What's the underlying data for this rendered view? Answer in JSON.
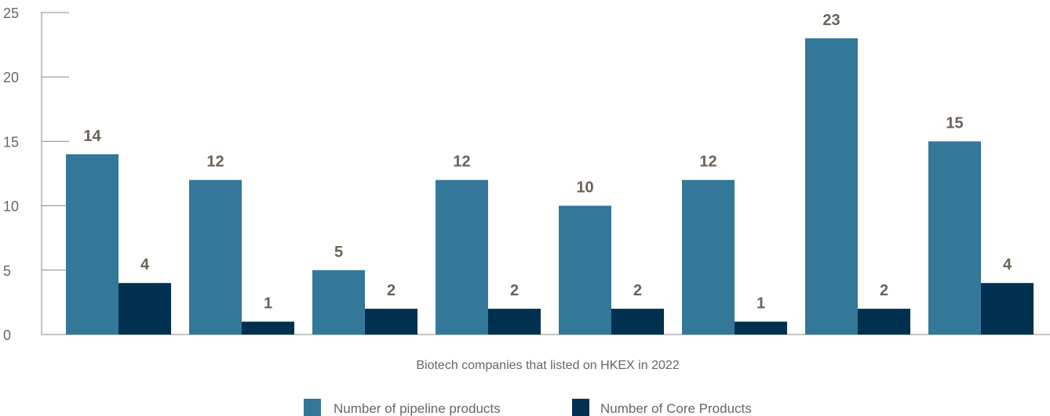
{
  "chart_data": {
    "type": "bar",
    "title": "",
    "xlabel": "Biotech companies that listed on HKEX in 2022",
    "ylabel": "",
    "ylim": [
      0,
      25
    ],
    "yticks": [
      0,
      5,
      10,
      15,
      20,
      25
    ],
    "grid": false,
    "legend_position": "bottom-center",
    "categories": [
      "",
      "",
      "",
      "",
      "",
      "",
      "",
      "",
      ""
    ],
    "series": [
      {
        "name": "Number of pipeline products",
        "color": "#337799",
        "values": [
          14,
          12,
          5,
          12,
          10,
          12,
          23,
          15,
          0
        ]
      },
      {
        "name": "Number of Core Products",
        "color": "#00304f",
        "values": [
          4,
          1,
          2,
          2,
          2,
          1,
          2,
          4,
          0
        ]
      }
    ]
  }
}
